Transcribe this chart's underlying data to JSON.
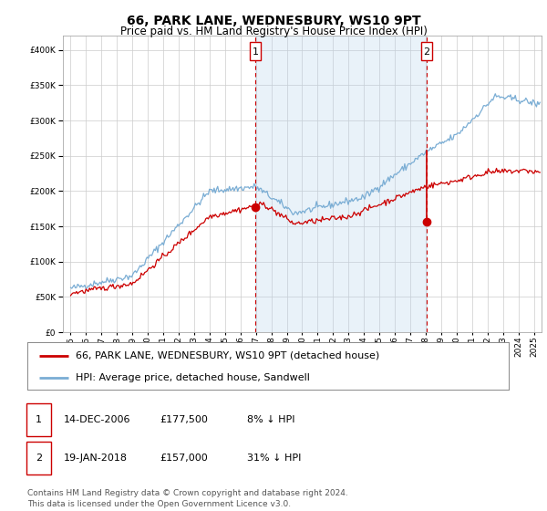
{
  "title": "66, PARK LANE, WEDNESBURY, WS10 9PT",
  "subtitle": "Price paid vs. HM Land Registry's House Price Index (HPI)",
  "bg_color": "#dce9f5",
  "plot_bg": "#ffffff",
  "hpi_color": "#7aadd4",
  "price_color": "#cc0000",
  "sale1_date_label": "14-DEC-2006",
  "sale1_price": 177500,
  "sale1_price_str": "£177,500",
  "sale1_hpi_pct": "8% ↓ HPI",
  "sale2_date_label": "19-JAN-2018",
  "sale2_price": 157000,
  "sale2_price_str": "£157,000",
  "sale2_hpi_pct": "31% ↓ HPI",
  "sale1_x": 2006.96,
  "sale2_x": 2018.05,
  "ylim": [
    0,
    420000
  ],
  "xlim_start": 1994.5,
  "xlim_end": 2025.5,
  "footer_line1": "Contains HM Land Registry data © Crown copyright and database right 2024.",
  "footer_line2": "This data is licensed under the Open Government Licence v3.0.",
  "legend_label1": "66, PARK LANE, WEDNESBURY, WS10 9PT (detached house)",
  "legend_label2": "HPI: Average price, detached house, Sandwell",
  "grid_color": "#cccccc",
  "title_fontsize": 10,
  "subtitle_fontsize": 8.5,
  "tick_fontsize": 6.5,
  "ylabel_fontsize": 8,
  "legend_fontsize": 8,
  "table_fontsize": 8,
  "footer_fontsize": 6.5
}
